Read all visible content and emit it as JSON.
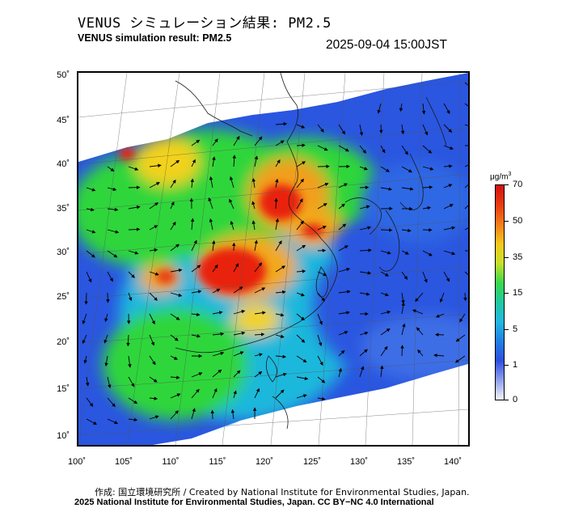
{
  "header": {
    "title_jp": "VENUS シミュレーション結果: PM2.5",
    "title_en": "VENUS simulation result: PM2.5",
    "timestamp": "2025-09-04 15:00JST"
  },
  "map": {
    "lat_ticks": [
      "50˚",
      "45˚",
      "40˚",
      "35˚",
      "30˚",
      "25˚",
      "20˚",
      "15˚",
      "10˚"
    ],
    "lon_ticks": [
      "100˚",
      "105˚",
      "110˚",
      "115˚",
      "120˚",
      "125˚",
      "130˚",
      "135˚",
      "140˚"
    ],
    "colors": {
      "very_high": "#e8200f",
      "high": "#f2a81a",
      "mid": "#2fd63a",
      "low": "#19b4d8",
      "very_low": "#2a56e0",
      "background_land": "#ffffff",
      "coast": "#333333",
      "arrow": "#000000"
    }
  },
  "legend": {
    "unit": "μg/m",
    "unit_sup": "3",
    "ticks": [
      "70",
      "50",
      "35",
      "15",
      "5",
      "1",
      "0"
    ],
    "gradient": [
      "#d41010",
      "#ea3a10",
      "#f47d18",
      "#f5c71c",
      "#c8e02a",
      "#3bd94a",
      "#1fc9a0",
      "#22b8e2",
      "#1f7fe6",
      "#2d4fe0",
      "#8ea0ec",
      "#f3f3fb"
    ]
  },
  "footer": {
    "credit_line": "作成: 国立環境研究所 / Created by National Institute for Environmental Studies, Japan.",
    "copyright_line": "2025 National Institute for Environmental Studies, Japan. CC BY−NC 4.0 International"
  }
}
